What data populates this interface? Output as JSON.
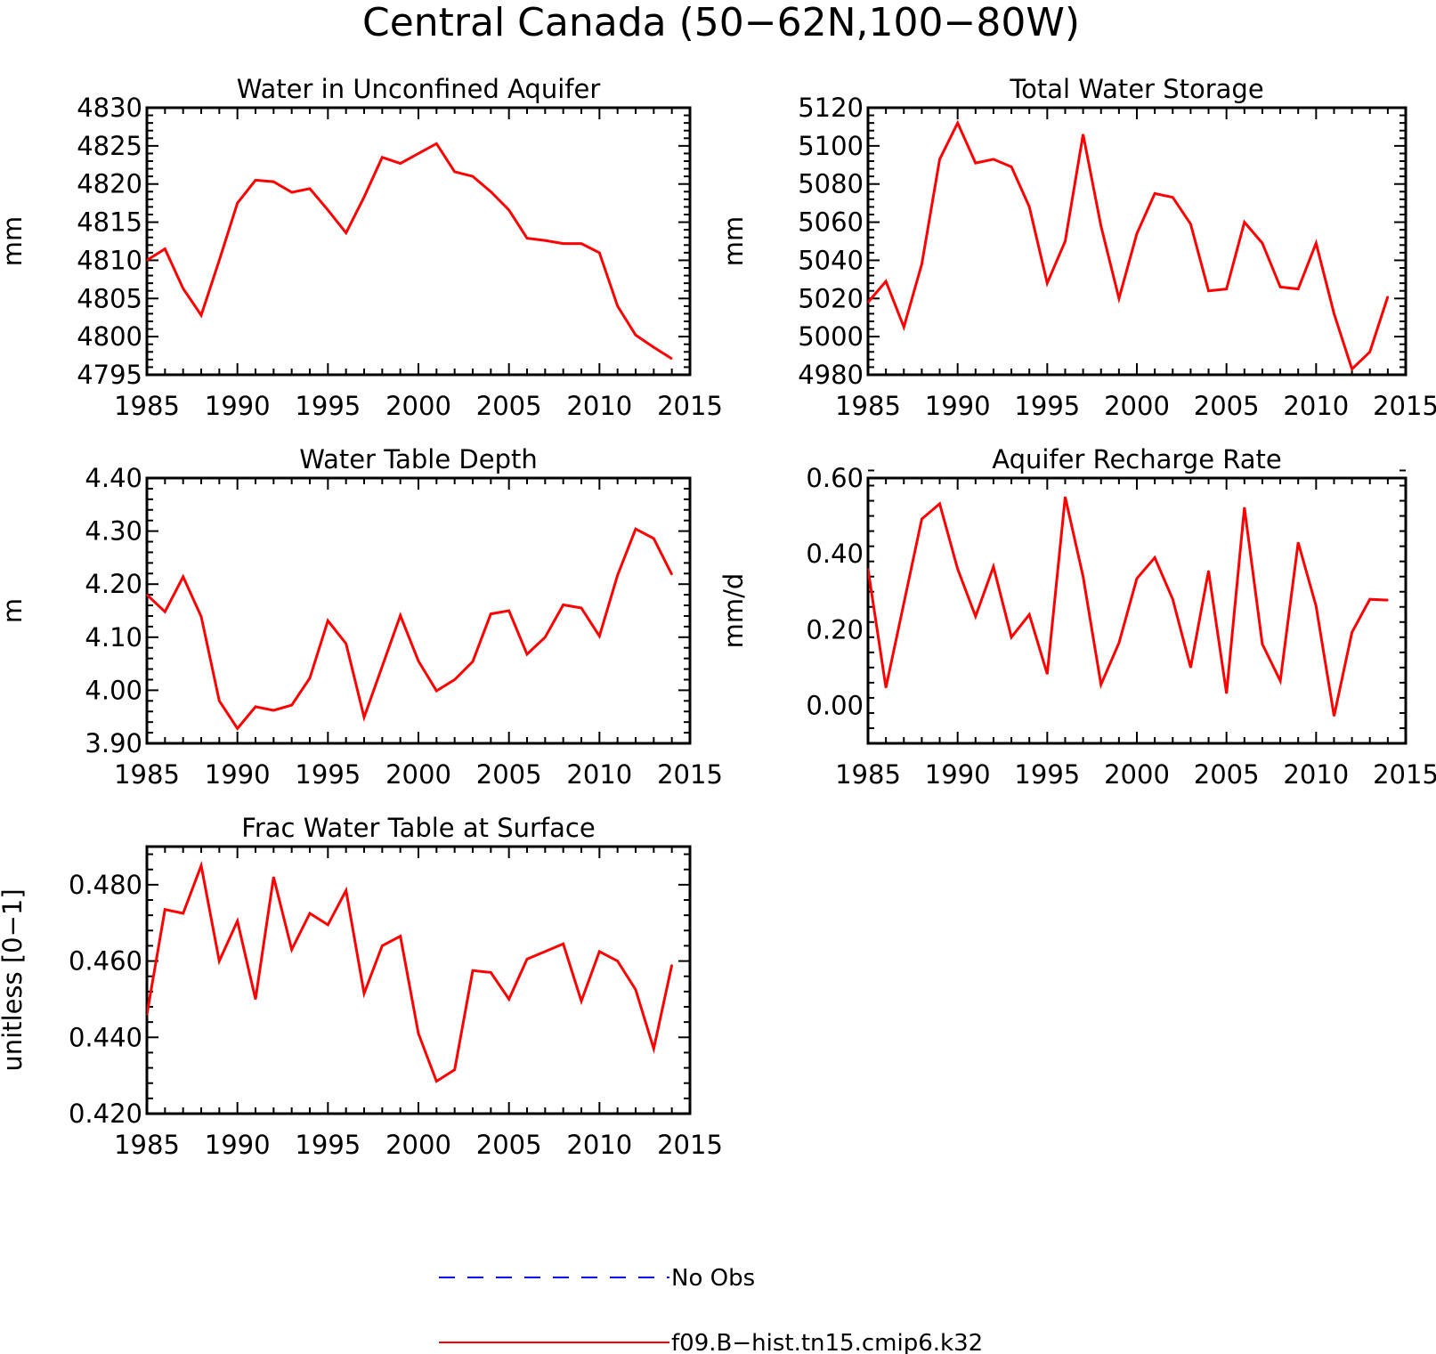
{
  "figure_title": "Central Canada (50−62N,100−80W)",
  "colors": {
    "model": "#ff0000",
    "obs": "#0000ff",
    "axes": "#000000"
  },
  "legend": {
    "obs_label": "No Obs",
    "model_label": "f09.B−hist.tn15.cmip6.k32"
  },
  "chart_data": [
    {
      "type": "line",
      "title": "Water in Unconfined Aquifer",
      "xlabel": "",
      "ylabel": "mm",
      "xlim": [
        1985,
        2015
      ],
      "ylim": [
        4795,
        4830
      ],
      "xticks": [
        "1985",
        "1990",
        "1995",
        "2000",
        "2005",
        "2010",
        "2015"
      ],
      "yticks": [
        "4795",
        "4800",
        "4805",
        "4810",
        "4815",
        "4820",
        "4825",
        "4830"
      ],
      "x": [
        1985,
        1986,
        1987,
        1988,
        1989,
        1990,
        1991,
        1992,
        1993,
        1994,
        1995,
        1996,
        1997,
        1998,
        1999,
        2000,
        2001,
        2002,
        2003,
        2004,
        2005,
        2006,
        2007,
        2008,
        2009,
        2010,
        2011,
        2012,
        2013,
        2014
      ],
      "series": [
        {
          "values": [
            4810.0,
            4811.5,
            4806.3,
            4802.8,
            4810.0,
            4817.5,
            4820.5,
            4820.3,
            4818.9,
            4819.4,
            4816.6,
            4813.6,
            4818.3,
            4823.5,
            4822.7,
            4824.0,
            4825.3,
            4821.6,
            4821.0,
            4819.0,
            4816.6,
            4812.9,
            4812.6,
            4812.2,
            4812.2,
            4811.0,
            4804.0,
            4800.2,
            4798.6,
            4797.1
          ]
        }
      ]
    },
    {
      "type": "line",
      "title": "Total Water Storage",
      "xlabel": "",
      "ylabel": "mm",
      "xlim": [
        1985,
        2015
      ],
      "ylim": [
        4980,
        5120
      ],
      "xticks": [
        "1985",
        "1990",
        "1995",
        "2000",
        "2005",
        "2010",
        "2015"
      ],
      "yticks": [
        "4980",
        "5000",
        "5020",
        "5040",
        "5060",
        "5080",
        "5100",
        "5120"
      ],
      "x": [
        1985,
        1986,
        1987,
        1988,
        1989,
        1990,
        1991,
        1992,
        1993,
        1994,
        1995,
        1996,
        1997,
        1998,
        1999,
        2000,
        2001,
        2002,
        2003,
        2004,
        2005,
        2006,
        2007,
        2008,
        2009,
        2010,
        2011,
        2012,
        2013,
        2014
      ],
      "series": [
        {
          "values": [
            5018,
            5029,
            5005,
            5038,
            5093,
            5112,
            5091,
            5093,
            5089,
            5068,
            5028,
            5050,
            5106,
            5058,
            5020,
            5054,
            5075,
            5073,
            5059,
            5024,
            5025,
            5060,
            5049,
            5026,
            5025,
            5049,
            5012,
            4983,
            4992,
            5021
          ]
        }
      ]
    },
    {
      "type": "line",
      "title": "Water Table Depth",
      "xlabel": "",
      "ylabel": "m",
      "xlim": [
        1985,
        2015
      ],
      "ylim": [
        3.9,
        4.4
      ],
      "xticks": [
        "1985",
        "1990",
        "1995",
        "2000",
        "2005",
        "2010",
        "2015"
      ],
      "yticks": [
        "3.90",
        "4.00",
        "4.10",
        "4.20",
        "4.30",
        "4.40"
      ],
      "x": [
        1985,
        1986,
        1987,
        1988,
        1989,
        1990,
        1991,
        1992,
        1993,
        1994,
        1995,
        1996,
        1997,
        1998,
        1999,
        2000,
        2001,
        2002,
        2003,
        2004,
        2005,
        2006,
        2007,
        2008,
        2009,
        2010,
        2011,
        2012,
        2013,
        2014
      ],
      "series": [
        {
          "values": [
            4.18,
            4.148,
            4.214,
            4.139,
            3.98,
            3.928,
            3.969,
            3.962,
            3.972,
            4.023,
            4.131,
            4.088,
            3.949,
            4.045,
            4.141,
            4.055,
            3.999,
            4.02,
            4.054,
            4.144,
            4.15,
            4.068,
            4.1,
            4.161,
            4.155,
            4.102,
            4.217,
            4.304,
            4.286,
            4.218
          ]
        }
      ]
    },
    {
      "type": "line",
      "title": "Aquifer Recharge Rate",
      "xlabel": "",
      "ylabel": "mm/d",
      "xlim": [
        1985,
        2015
      ],
      "ylim": [
        -0.1,
        0.6
      ],
      "xticks": [
        "1985",
        "1990",
        "1995",
        "2000",
        "2005",
        "2010",
        "2015"
      ],
      "yticks": [
        "0.00",
        "0.20",
        "0.40",
        "0.60"
      ],
      "x": [
        1985,
        1986,
        1987,
        1988,
        1989,
        1990,
        1991,
        1992,
        1993,
        1994,
        1995,
        1996,
        1997,
        1998,
        1999,
        2000,
        2001,
        2002,
        2003,
        2004,
        2005,
        2006,
        2007,
        2008,
        2009,
        2010,
        2011,
        2012,
        2013,
        2014
      ],
      "series": [
        {
          "values": [
            0.36,
            0.047,
            0.27,
            0.492,
            0.532,
            0.36,
            0.235,
            0.366,
            0.18,
            0.24,
            0.083,
            0.55,
            0.34,
            0.055,
            0.165,
            0.335,
            0.39,
            0.28,
            0.1,
            0.355,
            0.032,
            0.522,
            0.162,
            0.065,
            0.43,
            0.262,
            -0.028,
            0.193,
            0.28,
            0.278
          ]
        }
      ]
    },
    {
      "type": "line",
      "title": "Frac Water Table at Surface",
      "xlabel": "",
      "ylabel": "unitless [0−1]",
      "xlim": [
        1985,
        2015
      ],
      "ylim": [
        0.42,
        0.49
      ],
      "xticks": [
        "1985",
        "1990",
        "1995",
        "2000",
        "2005",
        "2010",
        "2015"
      ],
      "yticks": [
        "0.420",
        "0.440",
        "0.460",
        "0.480"
      ],
      "x": [
        1985,
        1986,
        1987,
        1988,
        1989,
        1990,
        1991,
        1992,
        1993,
        1994,
        1995,
        1996,
        1997,
        1998,
        1999,
        2000,
        2001,
        2002,
        2003,
        2004,
        2005,
        2006,
        2007,
        2008,
        2009,
        2010,
        2011,
        2012,
        2013,
        2014
      ],
      "series": [
        {
          "values": [
            0.446,
            0.4735,
            0.4725,
            0.485,
            0.46,
            0.4705,
            0.45,
            0.482,
            0.463,
            0.4725,
            0.4695,
            0.4785,
            0.4515,
            0.464,
            0.4665,
            0.441,
            0.4285,
            0.4315,
            0.4575,
            0.457,
            0.45,
            0.4605,
            0.4625,
            0.4645,
            0.4495,
            0.4625,
            0.46,
            0.4525,
            0.437,
            0.459
          ]
        }
      ]
    }
  ]
}
